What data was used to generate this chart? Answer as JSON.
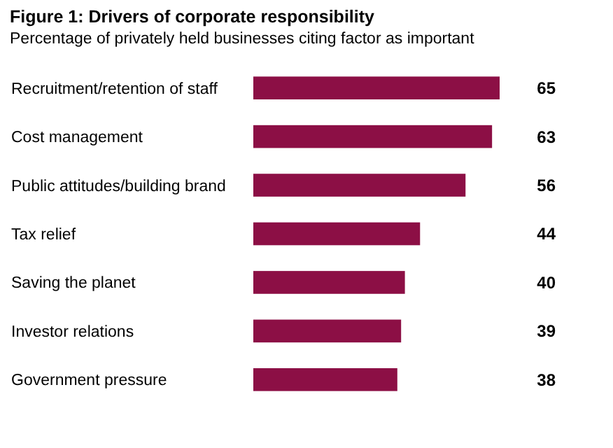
{
  "chart_data": {
    "type": "bar",
    "orientation": "horizontal",
    "title": "Figure 1: Drivers of corporate responsibility",
    "subtitle": "Percentage of privately held businesses citing factor as important",
    "categories": [
      "Recruitment/retention of staff",
      "Cost management",
      "Public attitudes/building brand",
      "Tax relief",
      "Saving the planet",
      "Investor relations",
      "Government pressure"
    ],
    "values": [
      65,
      63,
      56,
      44,
      40,
      39,
      38
    ],
    "color": "#8c0f45",
    "data_labels": true
  }
}
